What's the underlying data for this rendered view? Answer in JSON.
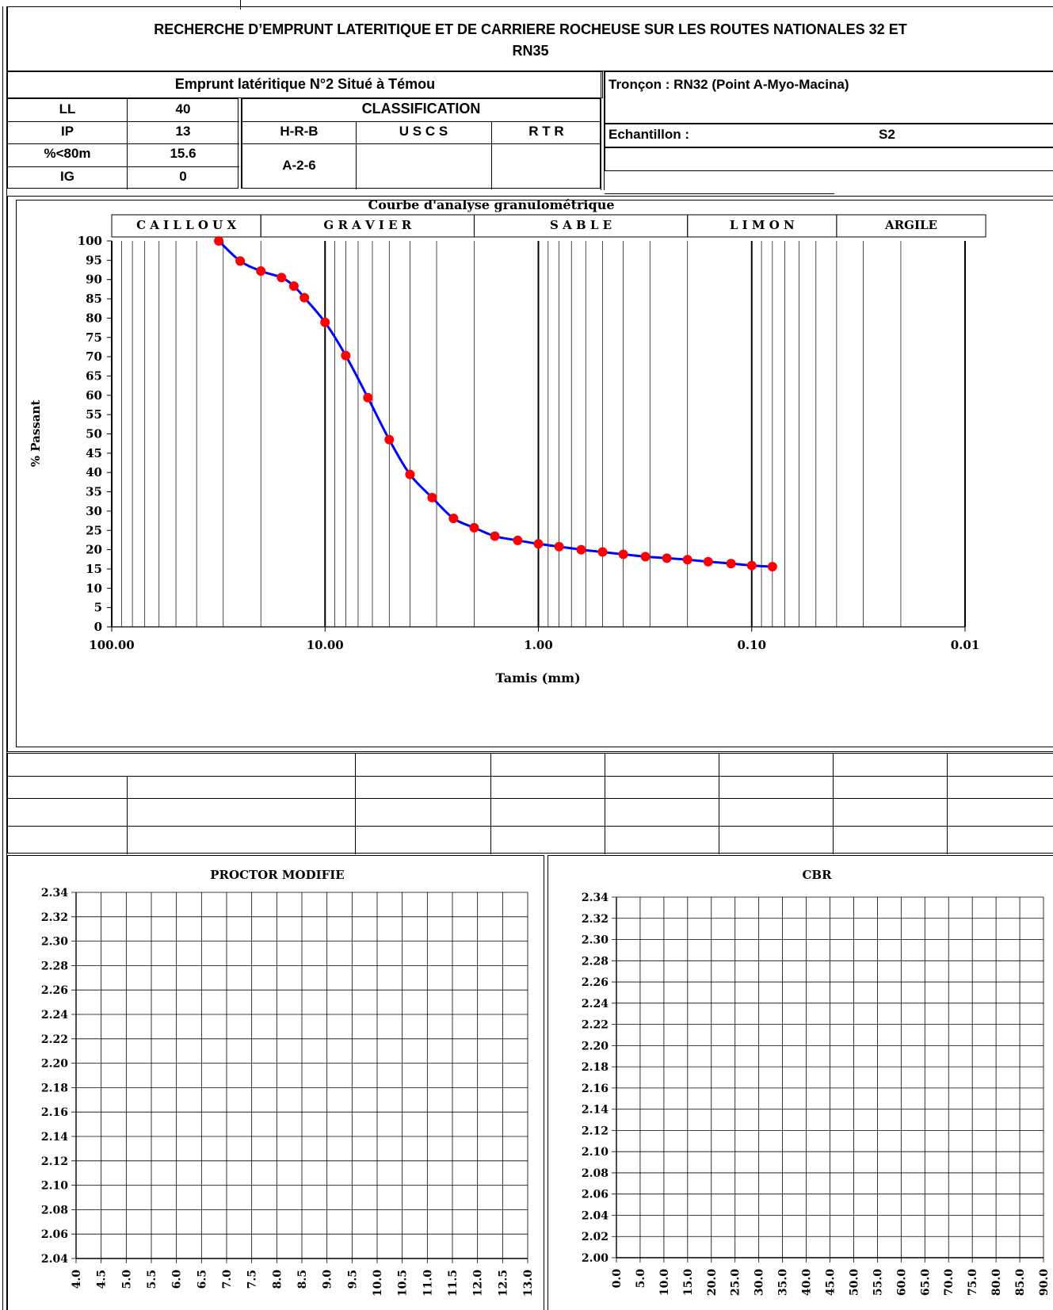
{
  "header": {
    "title_line1": "RECHERCHE D’EMPRUNT LATERITIQUE ET DE CARRIERE ROCHEUSE SUR LES ROUTES NATIONALES 32 ET",
    "title_line2": "RN35",
    "emprunt": "Emprunt latéritique N°2 Situé à Témou",
    "troncon": "Tronçon : RN32 (Point A-Myo-Macina)",
    "echantillon_label": "Echantillon :",
    "echantillon_value": "S2"
  },
  "params": [
    {
      "label": "LL",
      "value": "40"
    },
    {
      "label": "IP",
      "value": "13"
    },
    {
      "label": "%<80m",
      "value": "15.6"
    },
    {
      "label": "IG",
      "value": "0"
    }
  ],
  "classification": {
    "title": "CLASSIFICATION",
    "headers": [
      "H-R-B",
      "U S C S",
      "R T R"
    ],
    "values": [
      "A-2-6",
      "",
      ""
    ]
  },
  "chart_data": [
    {
      "type": "line",
      "title": "Courbe d'analyse granulométrique",
      "xlabel": "Tamis (mm)",
      "ylabel": "% Passant",
      "x_scale": "log",
      "x_reversed": true,
      "xlim": [
        100,
        0.01
      ],
      "ylim": [
        0,
        100
      ],
      "x_tick_labels": [
        "100.00",
        "10.00",
        "1.00",
        "0.10",
        "0.01"
      ],
      "y_ticks": [
        0,
        5,
        10,
        15,
        20,
        25,
        30,
        35,
        40,
        45,
        50,
        55,
        60,
        65,
        70,
        75,
        80,
        85,
        90,
        95,
        100
      ],
      "grid": true,
      "bands": [
        {
          "label": "C A I L L O U X",
          "from": 200,
          "to": 20
        },
        {
          "label": "G R A V I E R",
          "from": 20,
          "to": 2
        },
        {
          "label": "S A B L E",
          "from": 2,
          "to": 0.2
        },
        {
          "label": "L I M O N",
          "from": 0.2,
          "to": 0.04
        },
        {
          "label": "ARGILE",
          "from": 0.04,
          "to": 0.008
        }
      ],
      "series": [
        {
          "color": "#0000ff",
          "marker_color": "#ff0000",
          "x": [
            31.5,
            25,
            20,
            16,
            14,
            12.5,
            10,
            8,
            6.3,
            5,
            4,
            3.15,
            2.5,
            2,
            1.6,
            1.25,
            1,
            0.8,
            0.63,
            0.5,
            0.4,
            0.315,
            0.25,
            0.2,
            0.16,
            0.125,
            0.1,
            0.08
          ],
          "y": [
            100,
            94.8,
            92.2,
            90.5,
            88.3,
            85.3,
            78.9,
            70.3,
            59.4,
            48.5,
            39.5,
            33.5,
            28.1,
            25.7,
            23.5,
            22.4,
            21.5,
            20.8,
            20.0,
            19.4,
            18.8,
            18.2,
            17.8,
            17.4,
            16.9,
            16.4,
            15.9,
            15.6
          ]
        }
      ]
    },
    {
      "type": "line",
      "title": "PROCTOR MODIFIE",
      "x_tick_labels": [
        "4.0",
        "4.5",
        "5.0",
        "5.5",
        "6.0",
        "6.5",
        "7.0",
        "7.5",
        "8.0",
        "8.5",
        "9.0",
        "9.5",
        "10.0",
        "10.5",
        "11.0",
        "11.5",
        "12.0",
        "12.5",
        "13.0"
      ],
      "y_tick_labels": [
        "2.04",
        "2.06",
        "2.08",
        "2.10",
        "2.12",
        "2.14",
        "2.16",
        "2.18",
        "2.20",
        "2.22",
        "2.24",
        "2.26",
        "2.28",
        "2.30",
        "2.32",
        "2.34"
      ],
      "xlim": [
        4.0,
        13.0
      ],
      "ylim": [
        2.04,
        2.34
      ],
      "grid": true,
      "series": []
    },
    {
      "type": "line",
      "title": "CBR",
      "x_tick_labels": [
        "0.0",
        "5.0",
        "10.0",
        "15.0",
        "20.0",
        "25.0",
        "30.0",
        "35.0",
        "40.0",
        "45.0",
        "50.0",
        "55.0",
        "60.0",
        "65.0",
        "70.0",
        "75.0",
        "80.0",
        "85.0",
        "90.0"
      ],
      "y_tick_labels": [
        "2.00",
        "2.02",
        "2.04",
        "2.06",
        "2.08",
        "2.10",
        "2.12",
        "2.14",
        "2.16",
        "2.18",
        "2.20",
        "2.22",
        "2.24",
        "2.26",
        "2.28",
        "2.30",
        "2.32",
        "2.34"
      ],
      "xlim": [
        0,
        90
      ],
      "ylim": [
        2.0,
        2.34
      ],
      "grid": true,
      "series": []
    }
  ]
}
